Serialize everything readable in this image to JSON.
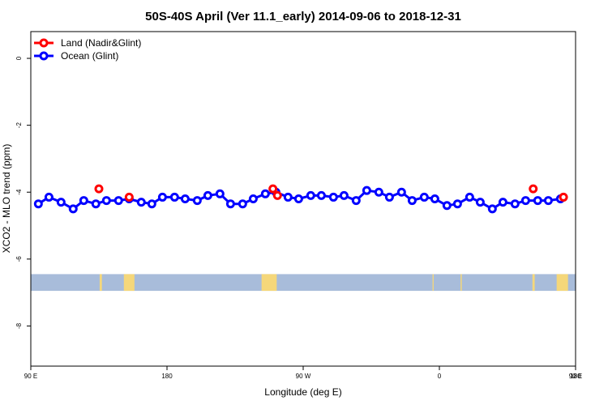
{
  "chart_data": {
    "type": "line",
    "title": "50S-40S April (Ver 11.1_early)   2014-09-06 to 2018-12-31",
    "xlabel": "Longitude (deg E)",
    "ylabel": "XCO2 - MLO trend (ppm)",
    "xlim": [
      90,
      450
    ],
    "ylim": [
      -9.2,
      0.8
    ],
    "xticks": [
      {
        "value": 90,
        "label": "90 E"
      },
      {
        "value": 180,
        "label": "180"
      },
      {
        "value": 270,
        "label": "90 W"
      },
      {
        "value": 360,
        "label": "0"
      },
      {
        "value": 450,
        "label": "90 E"
      },
      {
        "value": 540,
        "label": "180"
      }
    ],
    "yticks": [
      {
        "value": 0,
        "label": "0"
      },
      {
        "value": -2,
        "label": "-2"
      },
      {
        "value": -4,
        "label": "-4"
      },
      {
        "value": -6,
        "label": "-6"
      },
      {
        "value": -8,
        "label": "-8"
      }
    ],
    "legend_position": "top-left",
    "series": [
      {
        "name": "Land (Nadir&Glint)",
        "color": "#ff0000",
        "line": false,
        "points": [
          {
            "x": 135,
            "y": -3.9
          },
          {
            "x": 155,
            "y": -4.15
          },
          {
            "x": 250,
            "y": -3.9
          },
          {
            "x": 253,
            "y": -4.1
          },
          {
            "x": 422,
            "y": -3.9
          },
          {
            "x": 442,
            "y": -4.15
          }
        ]
      },
      {
        "name": "Ocean (Glint)",
        "color": "#0000ff",
        "line": true,
        "points": [
          {
            "x": 95,
            "y": -4.35
          },
          {
            "x": 102,
            "y": -4.15
          },
          {
            "x": 110,
            "y": -4.3
          },
          {
            "x": 118,
            "y": -4.5
          },
          {
            "x": 125,
            "y": -4.25
          },
          {
            "x": 133,
            "y": -4.35
          },
          {
            "x": 140,
            "y": -4.25
          },
          {
            "x": 148,
            "y": -4.25
          },
          {
            "x": 155,
            "y": -4.2
          },
          {
            "x": 163,
            "y": -4.3
          },
          {
            "x": 170,
            "y": -4.35
          },
          {
            "x": 177,
            "y": -4.15
          },
          {
            "x": 185,
            "y": -4.15
          },
          {
            "x": 192,
            "y": -4.2
          },
          {
            "x": 200,
            "y": -4.25
          },
          {
            "x": 207,
            "y": -4.1
          },
          {
            "x": 215,
            "y": -4.05
          },
          {
            "x": 222,
            "y": -4.35
          },
          {
            "x": 230,
            "y": -4.35
          },
          {
            "x": 237,
            "y": -4.2
          },
          {
            "x": 245,
            "y": -4.05
          },
          {
            "x": 252,
            "y": -4.0
          },
          {
            "x": 260,
            "y": -4.15
          },
          {
            "x": 267,
            "y": -4.2
          },
          {
            "x": 275,
            "y": -4.1
          },
          {
            "x": 282,
            "y": -4.1
          },
          {
            "x": 290,
            "y": -4.15
          },
          {
            "x": 297,
            "y": -4.1
          },
          {
            "x": 305,
            "y": -4.25
          },
          {
            "x": 312,
            "y": -3.95
          },
          {
            "x": 320,
            "y": -4.0
          },
          {
            "x": 327,
            "y": -4.15
          },
          {
            "x": 335,
            "y": -4.0
          },
          {
            "x": 342,
            "y": -4.25
          },
          {
            "x": 350,
            "y": -4.15
          },
          {
            "x": 357,
            "y": -4.2
          },
          {
            "x": 365,
            "y": -4.4
          },
          {
            "x": 372,
            "y": -4.35
          },
          {
            "x": 380,
            "y": -4.15
          },
          {
            "x": 387,
            "y": -4.3
          },
          {
            "x": 395,
            "y": -4.5
          },
          {
            "x": 402,
            "y": -4.3
          },
          {
            "x": 410,
            "y": -4.35
          },
          {
            "x": 417,
            "y": -4.25
          },
          {
            "x": 425,
            "y": -4.25
          },
          {
            "x": 432,
            "y": -4.25
          },
          {
            "x": 440,
            "y": -4.2
          }
        ]
      }
    ],
    "map_band": {
      "y_top": -6.45,
      "y_bottom": -6.95,
      "ocean_color": "#a8bcda",
      "land_color": "#f5d77a",
      "land_spans": [
        {
          "x0": 135.5,
          "x1": 137.0
        },
        {
          "x0": 151.5,
          "x1": 158.5
        },
        {
          "x0": 242.5,
          "x1": 252.5
        },
        {
          "x0": 355.5,
          "x1": 356.2
        },
        {
          "x0": 374.0,
          "x1": 374.8
        },
        {
          "x0": 421.5,
          "x1": 423.0
        },
        {
          "x0": 437.5,
          "x1": 445.0
        }
      ]
    }
  }
}
